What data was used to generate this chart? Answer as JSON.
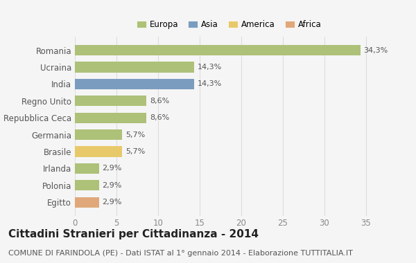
{
  "categories": [
    "Romania",
    "Ucraina",
    "India",
    "Regno Unito",
    "Repubblica Ceca",
    "Germania",
    "Brasile",
    "Irlanda",
    "Polonia",
    "Egitto"
  ],
  "values": [
    34.3,
    14.3,
    14.3,
    8.6,
    8.6,
    5.7,
    5.7,
    2.9,
    2.9,
    2.9
  ],
  "labels": [
    "34,3%",
    "14,3%",
    "14,3%",
    "8,6%",
    "8,6%",
    "5,7%",
    "5,7%",
    "2,9%",
    "2,9%",
    "2,9%"
  ],
  "colors": [
    "#adc178",
    "#adc178",
    "#7a9cbf",
    "#adc178",
    "#adc178",
    "#adc178",
    "#e8c96a",
    "#adc178",
    "#adc178",
    "#e0a87a"
  ],
  "legend_labels": [
    "Europa",
    "Asia",
    "America",
    "Africa"
  ],
  "legend_colors": [
    "#adc178",
    "#7a9cbf",
    "#e8c96a",
    "#e0a87a"
  ],
  "title": "Cittadini Stranieri per Cittadinanza - 2014",
  "subtitle": "COMUNE DI FARINDOLA (PE) - Dati ISTAT al 1° gennaio 2014 - Elaborazione TUTTITALIA.IT",
  "xlim": [
    0,
    37
  ],
  "xticks": [
    0,
    5,
    10,
    15,
    20,
    25,
    30,
    35
  ],
  "background_color": "#f5f5f5",
  "grid_color": "#dddddd",
  "title_fontsize": 11,
  "subtitle_fontsize": 8,
  "label_fontsize": 8,
  "ytick_fontsize": 8.5,
  "xtick_fontsize": 8.5
}
